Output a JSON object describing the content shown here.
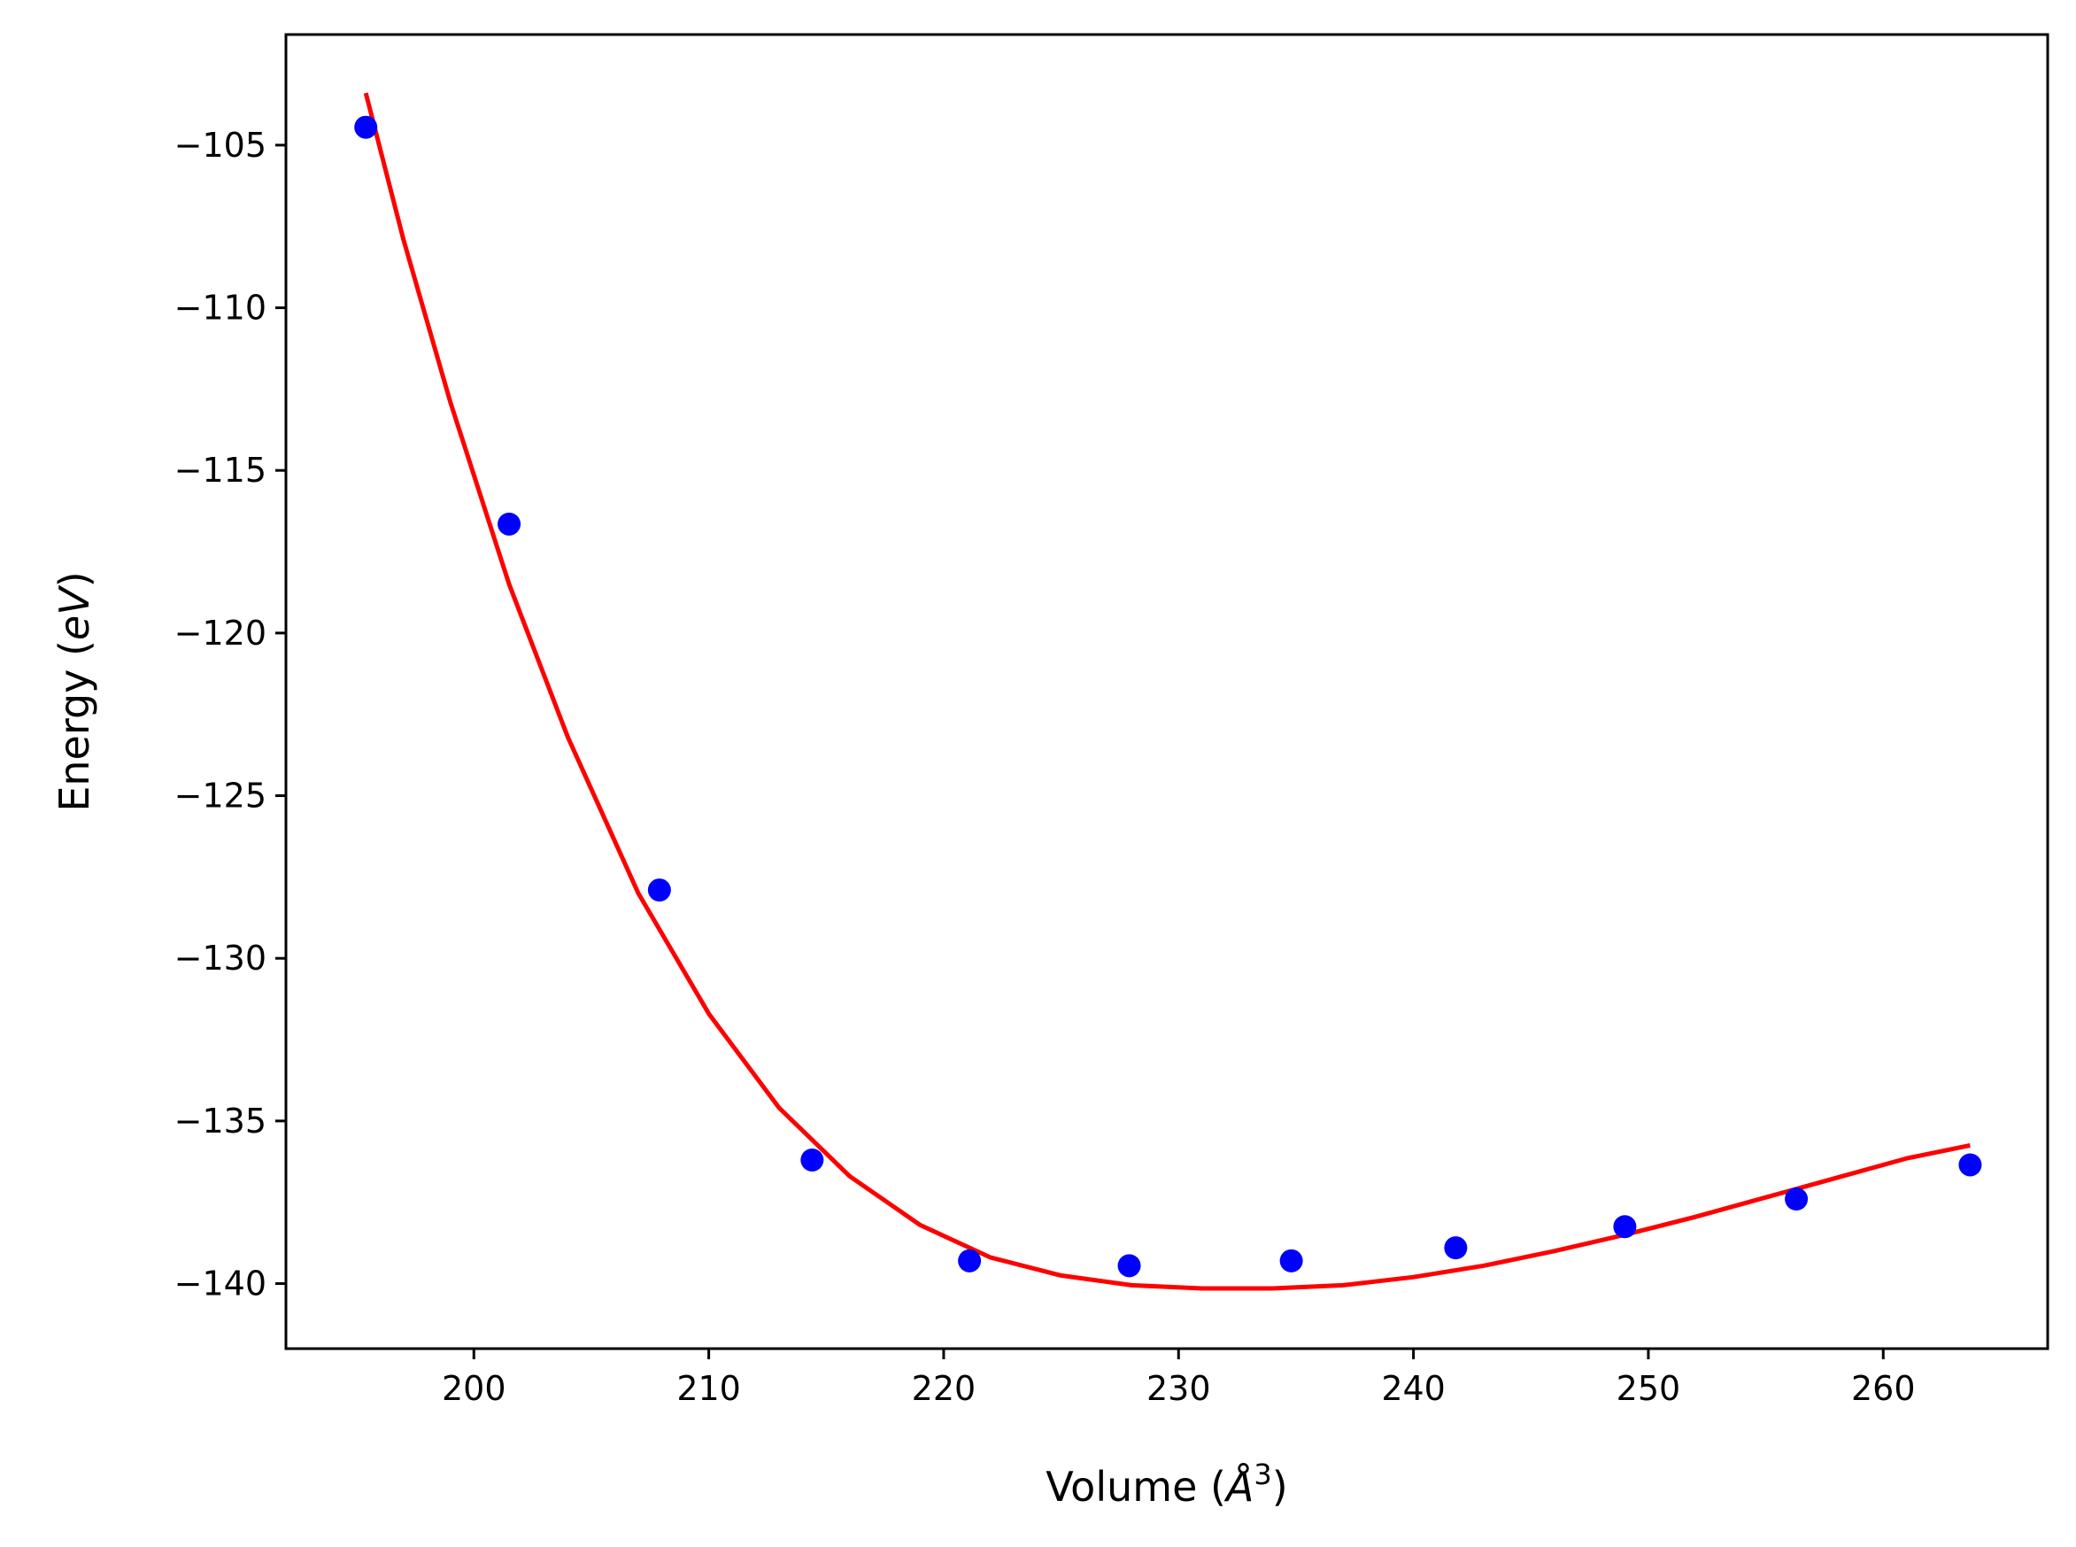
{
  "chart_data": {
    "type": "scatter",
    "xlabel": {
      "prefix": "Volume (",
      "symbol": "Å",
      "sup": "3",
      "suffix": ")"
    },
    "ylabel": {
      "prefix": "Energy (",
      "symbol": "eV",
      "suffix": ")"
    },
    "xlim": [
      192,
      267
    ],
    "ylim": [
      -142,
      -101.6
    ],
    "xticks": [
      200,
      210,
      220,
      230,
      240,
      250,
      260
    ],
    "yticks": [
      -105,
      -110,
      -115,
      -120,
      -125,
      -130,
      -135,
      -140
    ],
    "xtick_labels": [
      "200",
      "210",
      "220",
      "230",
      "240",
      "250",
      "260"
    ],
    "ytick_labels": [
      "−105",
      "−110",
      "−115",
      "−120",
      "−125",
      "−130",
      "−135",
      "−140"
    ],
    "grid": false,
    "series": [
      {
        "kind": "scatter",
        "color": "#0000ff",
        "points": [
          [
            195.4,
            -104.45
          ],
          [
            201.5,
            -116.65
          ],
          [
            207.9,
            -127.9
          ],
          [
            214.4,
            -136.2
          ],
          [
            221.1,
            -139.3
          ],
          [
            227.9,
            -139.45
          ],
          [
            234.8,
            -139.3
          ],
          [
            241.8,
            -138.9
          ],
          [
            249.0,
            -138.25
          ],
          [
            256.3,
            -137.4
          ],
          [
            263.7,
            -136.35
          ]
        ]
      },
      {
        "kind": "line",
        "color": "#ff0000",
        "points": [
          [
            195.4,
            -103.4
          ],
          [
            197.0,
            -107.9
          ],
          [
            199.0,
            -112.9
          ],
          [
            201.5,
            -118.5
          ],
          [
            204.0,
            -123.2
          ],
          [
            207.0,
            -128.0
          ],
          [
            210.0,
            -131.7
          ],
          [
            213.0,
            -134.6
          ],
          [
            216.0,
            -136.7
          ],
          [
            219.0,
            -138.2
          ],
          [
            222.0,
            -139.2
          ],
          [
            225.0,
            -139.75
          ],
          [
            228.0,
            -140.05
          ],
          [
            231.0,
            -140.15
          ],
          [
            234.0,
            -140.15
          ],
          [
            237.0,
            -140.05
          ],
          [
            240.0,
            -139.8
          ],
          [
            243.0,
            -139.45
          ],
          [
            246.0,
            -139.0
          ],
          [
            249.0,
            -138.5
          ],
          [
            252.0,
            -137.95
          ],
          [
            255.0,
            -137.35
          ],
          [
            258.0,
            -136.75
          ],
          [
            261.0,
            -136.15
          ],
          [
            263.7,
            -135.75
          ]
        ]
      }
    ]
  }
}
